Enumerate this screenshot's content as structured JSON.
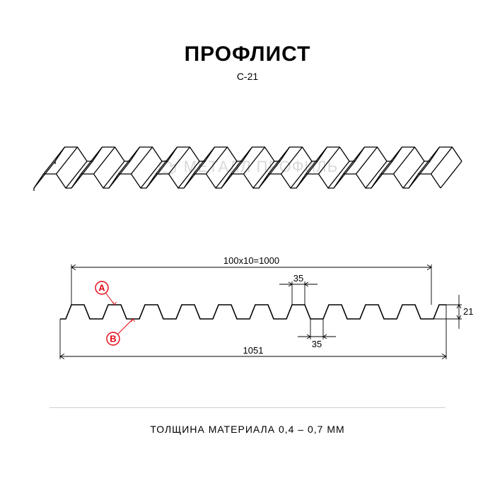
{
  "header": {
    "title": "ПРОФЛИСТ",
    "subtitle": "С-21"
  },
  "watermark": {
    "text": "МЕТАЛЛ ПРОФИЛЬ",
    "color": "#d9d9d9",
    "fontsize": 22
  },
  "isometric": {
    "type": "diagram",
    "stroke": "#000000",
    "stroke_width": 1.3,
    "ribs": 11,
    "rib_pitch": 53,
    "rib_top_w": 18,
    "rib_bot_w": 22,
    "rib_height": 20,
    "depth_dx": 30,
    "depth_dy": -38,
    "background": "#ffffff"
  },
  "profile": {
    "type": "diagram",
    "stroke": "#000000",
    "stroke_width": 1.6,
    "dim_stroke": "#000000",
    "dim_stroke_width": 0.9,
    "ribs": 10,
    "rib_pitch": 52,
    "rib_top_w": 18,
    "rib_bot_w": 18,
    "rib_height": 20,
    "callout_stroke": "#e30613",
    "callout_fill": "#ffffff",
    "callout_radius": 9,
    "callouts": {
      "A": "A",
      "B": "B"
    },
    "dimensions": {
      "pitch_label": "100x10=1000",
      "top_w_label": "35",
      "bot_w_label": "35",
      "height_label": "21",
      "overall_label": "1051"
    }
  },
  "footer": {
    "thickness": "ТОЛЩИНА МАТЕРИАЛА 0,4 – 0,7 ММ"
  },
  "divider_color": "#cfcfcf"
}
